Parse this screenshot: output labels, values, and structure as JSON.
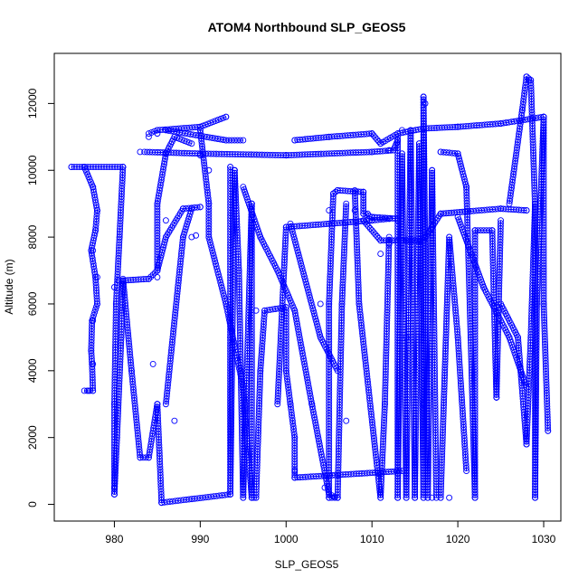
{
  "chart_data": {
    "type": "scatter",
    "title": "ATOM4 Northbound SLP_GEOS5",
    "xlabel": "SLP_GEOS5",
    "ylabel": "Altitude (m)",
    "xlim": [
      973,
      1032
    ],
    "ylim": [
      -500,
      13500
    ],
    "xticks": [
      980,
      990,
      1000,
      1010,
      1020,
      1030
    ],
    "yticks": [
      0,
      2000,
      4000,
      6000,
      8000,
      10000,
      12000
    ],
    "marker": "open-circle",
    "grid": false,
    "color": "#0000ff",
    "series": [
      {
        "points": [
          [
            975,
            10100
          ],
          [
            981,
            10100
          ],
          [
            976.5,
            10100
          ],
          [
            977.5,
            9500
          ],
          [
            978,
            8800
          ],
          [
            977.5,
            7600
          ],
          [
            978,
            6800
          ],
          [
            977.5,
            5500
          ],
          [
            977.5,
            4200
          ],
          [
            977,
            3400
          ],
          [
            981,
            10100
          ],
          [
            980,
            6500
          ],
          [
            980,
            500
          ],
          [
            980,
            300
          ],
          [
            980.5,
            6700
          ],
          [
            984,
            6750
          ],
          [
            985,
            7000
          ],
          [
            986,
            8500
          ],
          [
            988,
            8850
          ],
          [
            990,
            8900
          ],
          [
            984,
            11000
          ],
          [
            985,
            11100
          ],
          [
            990,
            11200
          ],
          [
            993,
            11600
          ],
          [
            985,
            11200
          ],
          [
            983,
            10550
          ],
          [
            990,
            10500
          ],
          [
            1000,
            10450
          ],
          [
            1010,
            10550
          ],
          [
            1012,
            10600
          ],
          [
            993.5,
            10100
          ],
          [
            993.5,
            300
          ],
          [
            994,
            10000
          ],
          [
            996,
            9000
          ],
          [
            996,
            200
          ],
          [
            996.5,
            5800
          ],
          [
            1000,
            5900
          ],
          [
            1000,
            4000
          ],
          [
            1000.5,
            3000
          ],
          [
            1001,
            1000
          ],
          [
            1001,
            800
          ],
          [
            1001,
            10900
          ],
          [
            1005,
            11000
          ],
          [
            1010,
            11100
          ],
          [
            1013.5,
            11200
          ],
          [
            1016,
            11250
          ],
          [
            1020,
            11300
          ],
          [
            1025,
            11400
          ],
          [
            1030,
            11600
          ],
          [
            1000,
            8300
          ],
          [
            1010,
            8500
          ],
          [
            1012,
            8550
          ],
          [
            1013,
            8500
          ],
          [
            1013,
            200
          ],
          [
            1014,
            7900
          ],
          [
            1016,
            7900
          ],
          [
            1018,
            8700
          ],
          [
            1025,
            8850
          ],
          [
            1028,
            8800
          ],
          [
            1005.5,
            9300
          ],
          [
            1006,
            9400
          ],
          [
            1009,
            9350
          ],
          [
            1005,
            200
          ],
          [
            1006,
            200
          ],
          [
            1008,
            8800
          ],
          [
            1009.5,
            8700
          ],
          [
            1010,
            8600
          ],
          [
            1016,
            12200
          ],
          [
            1016.2,
            12000
          ],
          [
            1015,
            200
          ],
          [
            1017,
            200
          ],
          [
            1018,
            200
          ],
          [
            1018,
            10550
          ],
          [
            1020,
            10500
          ],
          [
            1021,
            9500
          ],
          [
            1022,
            200
          ],
          [
            1022,
            8200
          ],
          [
            1024,
            8200
          ],
          [
            1028,
            12800
          ],
          [
            1028.3,
            12700
          ],
          [
            1027.5,
            11800
          ],
          [
            1029,
            8900
          ],
          [
            1029,
            200
          ],
          [
            1030,
            11600
          ],
          [
            1030,
            6000
          ],
          [
            1030.5,
            2200
          ],
          [
            1028,
            1800
          ],
          [
            1024.5,
            3200
          ],
          [
            985,
            6800
          ],
          [
            984.5,
            4200
          ],
          [
            985,
            3000
          ],
          [
            985.5,
            50
          ],
          [
            987,
            2500
          ],
          [
            989,
            8000
          ],
          [
            989.5,
            8050
          ],
          [
            990,
            10450
          ],
          [
            991,
            10000
          ],
          [
            1005,
            8800
          ],
          [
            1004,
            6000
          ],
          [
            1003,
            3000
          ],
          [
            1004.5,
            500
          ],
          [
            1007,
            2500
          ],
          [
            1011,
            7500
          ],
          [
            1012,
            7800
          ],
          [
            1014,
            5000
          ],
          [
            1016,
            3000
          ],
          [
            1019,
            200
          ]
        ],
        "segments": [
          [
            [
              975,
              10100
            ],
            [
              981,
              10100
            ]
          ],
          [
            [
              976.5,
              10100
            ],
            [
              977.5,
              9500
            ],
            [
              978,
              8800
            ],
            [
              977.8,
              8200
            ],
            [
              977.3,
              7600
            ],
            [
              977.8,
              6800
            ],
            [
              978,
              6000
            ],
            [
              977.4,
              5500
            ],
            [
              977.3,
              4600
            ],
            [
              977.4,
              4200
            ],
            [
              977.5,
              3400
            ],
            [
              976.5,
              3400
            ]
          ],
          [
            [
              981,
              10100
            ],
            [
              980.6,
              8000
            ],
            [
              980.2,
              6000
            ],
            [
              980,
              3000
            ],
            [
              980,
              300
            ],
            [
              980.3,
              2000
            ],
            [
              980.8,
              5000
            ],
            [
              981,
              6700
            ],
            [
              984,
              6750
            ],
            [
              985,
              7000
            ],
            [
              986,
              8000
            ],
            [
              988,
              8850
            ],
            [
              990,
              8900
            ]
          ],
          [
            [
              981,
              6750
            ],
            [
              982,
              4000
            ],
            [
              983,
              1400
            ],
            [
              984,
              1400
            ],
            [
              985,
              3000
            ],
            [
              985.5,
              50
            ]
          ],
          [
            [
              985.5,
              50
            ],
            [
              993.5,
              300
            ]
          ],
          [
            [
              983.5,
              10550
            ],
            [
              990,
              10500
            ],
            [
              1000,
              10450
            ],
            [
              1010,
              10550
            ],
            [
              1012.5,
              10600
            ],
            [
              1013,
              10900
            ]
          ],
          [
            [
              984,
              11100
            ],
            [
              985,
              11200
            ],
            [
              990,
              11300
            ],
            [
              993,
              11600
            ]
          ],
          [
            [
              986,
              11200
            ],
            [
              993,
              10900
            ],
            [
              995,
              10900
            ]
          ],
          [
            [
              985,
              7000
            ],
            [
              985,
              9000
            ],
            [
              986,
              10500
            ],
            [
              987,
              11000
            ],
            [
              989,
              10800
            ]
          ],
          [
            [
              986,
              3000
            ],
            [
              988,
              8000
            ],
            [
              989,
              8850
            ]
          ],
          [
            [
              990,
              11200
            ],
            [
              991,
              9000
            ],
            [
              991,
              8000
            ],
            [
              993,
              6000
            ],
            [
              995,
              3500
            ],
            [
              996,
              200
            ],
            [
              996.5,
              200
            ],
            [
              997,
              4000
            ],
            [
              997.5,
              5800
            ]
          ],
          [
            [
              993.5,
              10100
            ],
            [
              993.5,
              5000
            ],
            [
              993.5,
              300
            ],
            [
              994,
              10000
            ],
            [
              994.5,
              7000
            ],
            [
              995,
              200
            ],
            [
              996,
              9000
            ],
            [
              996,
              200
            ]
          ],
          [
            [
              995,
              9500
            ],
            [
              997,
              8000
            ],
            [
              999,
              7000
            ],
            [
              1001,
              5800
            ],
            [
              1003,
              3000
            ],
            [
              1005,
              300
            ],
            [
              1006,
              200
            ]
          ],
          [
            [
              997.5,
              5800
            ],
            [
              1000,
              5900
            ],
            [
              1000,
              4000
            ],
            [
              1000.5,
              3000
            ],
            [
              1001,
              2000
            ],
            [
              1001,
              800
            ]
          ],
          [
            [
              1001,
              800
            ],
            [
              1013.5,
              1000
            ]
          ],
          [
            [
              1001,
              10900
            ],
            [
              1005,
              11000
            ],
            [
              1010,
              11100
            ],
            [
              1011,
              10800
            ],
            [
              1013,
              11100
            ],
            [
              1016,
              11250
            ],
            [
              1020,
              11300
            ],
            [
              1025,
              11400
            ],
            [
              1030,
              11600
            ]
          ],
          [
            [
              999,
              3000
            ],
            [
              1000,
              8300
            ],
            [
              1005,
              8400
            ],
            [
              1010,
              8500
            ],
            [
              1012,
              8550
            ]
          ],
          [
            [
              1005.5,
              9300
            ],
            [
              1006,
              9400
            ],
            [
              1009,
              9350
            ],
            [
              1009,
              8700
            ],
            [
              1010,
              8600
            ],
            [
              1013,
              8550
            ]
          ],
          [
            [
              1005.5,
              9300
            ],
            [
              1005,
              6000
            ],
            [
              1005,
              200
            ],
            [
              1006,
              200
            ],
            [
              1006.5,
              6000
            ],
            [
              1007,
              9000
            ]
          ],
          [
            [
              1008,
              9400
            ],
            [
              1008.5,
              6000
            ],
            [
              1011,
              200
            ],
            [
              1011.5,
              3000
            ],
            [
              1012,
              8000
            ]
          ],
          [
            [
              1009,
              8500
            ],
            [
              1011,
              7900
            ],
            [
              1014,
              7900
            ],
            [
              1016,
              7900
            ],
            [
              1018,
              8700
            ],
            [
              1025,
              8850
            ],
            [
              1028,
              8800
            ]
          ],
          [
            [
              1013,
              11000
            ],
            [
              1013,
              200
            ],
            [
              1013.5,
              10500
            ],
            [
              1014,
              200
            ],
            [
              1014.5,
              11200
            ],
            [
              1015,
              200
            ],
            [
              1015.5,
              10800
            ],
            [
              1016,
              200
            ],
            [
              1016,
              12200
            ],
            [
              1016.5,
              200
            ],
            [
              1017,
              10000
            ],
            [
              1017.5,
              200
            ]
          ],
          [
            [
              1018,
              10550
            ],
            [
              1020,
              10500
            ],
            [
              1021,
              9500
            ],
            [
              1021.5,
              5000
            ],
            [
              1022,
              200
            ],
            [
              1022,
              8200
            ],
            [
              1024,
              8200
            ],
            [
              1024.5,
              3200
            ],
            [
              1025,
              8500
            ]
          ],
          [
            [
              1018,
              200
            ],
            [
              1019,
              8000
            ],
            [
              1020,
              5000
            ],
            [
              1021,
              1000
            ]
          ],
          [
            [
              1026,
              9000
            ],
            [
              1027.5,
              11800
            ],
            [
              1028,
              12800
            ],
            [
              1028.5,
              12700
            ],
            [
              1029,
              8900
            ],
            [
              1029,
              200
            ],
            [
              1029.2,
              6000
            ],
            [
              1030,
              11600
            ],
            [
              1030,
              6000
            ],
            [
              1030.5,
              2200
            ]
          ],
          [
            [
              1025,
              6000
            ],
            [
              1027,
              5000
            ],
            [
              1028,
              1800
            ],
            [
              1028.5,
              5000
            ],
            [
              1029,
              9000
            ]
          ],
          [
            [
              1020,
              8600
            ],
            [
              1023,
              6500
            ],
            [
              1026,
              5000
            ],
            [
              1028,
              3500
            ]
          ],
          [
            [
              1000.5,
              8400
            ],
            [
              1004,
              5000
            ],
            [
              1006,
              4000
            ]
          ]
        ]
      }
    ]
  }
}
